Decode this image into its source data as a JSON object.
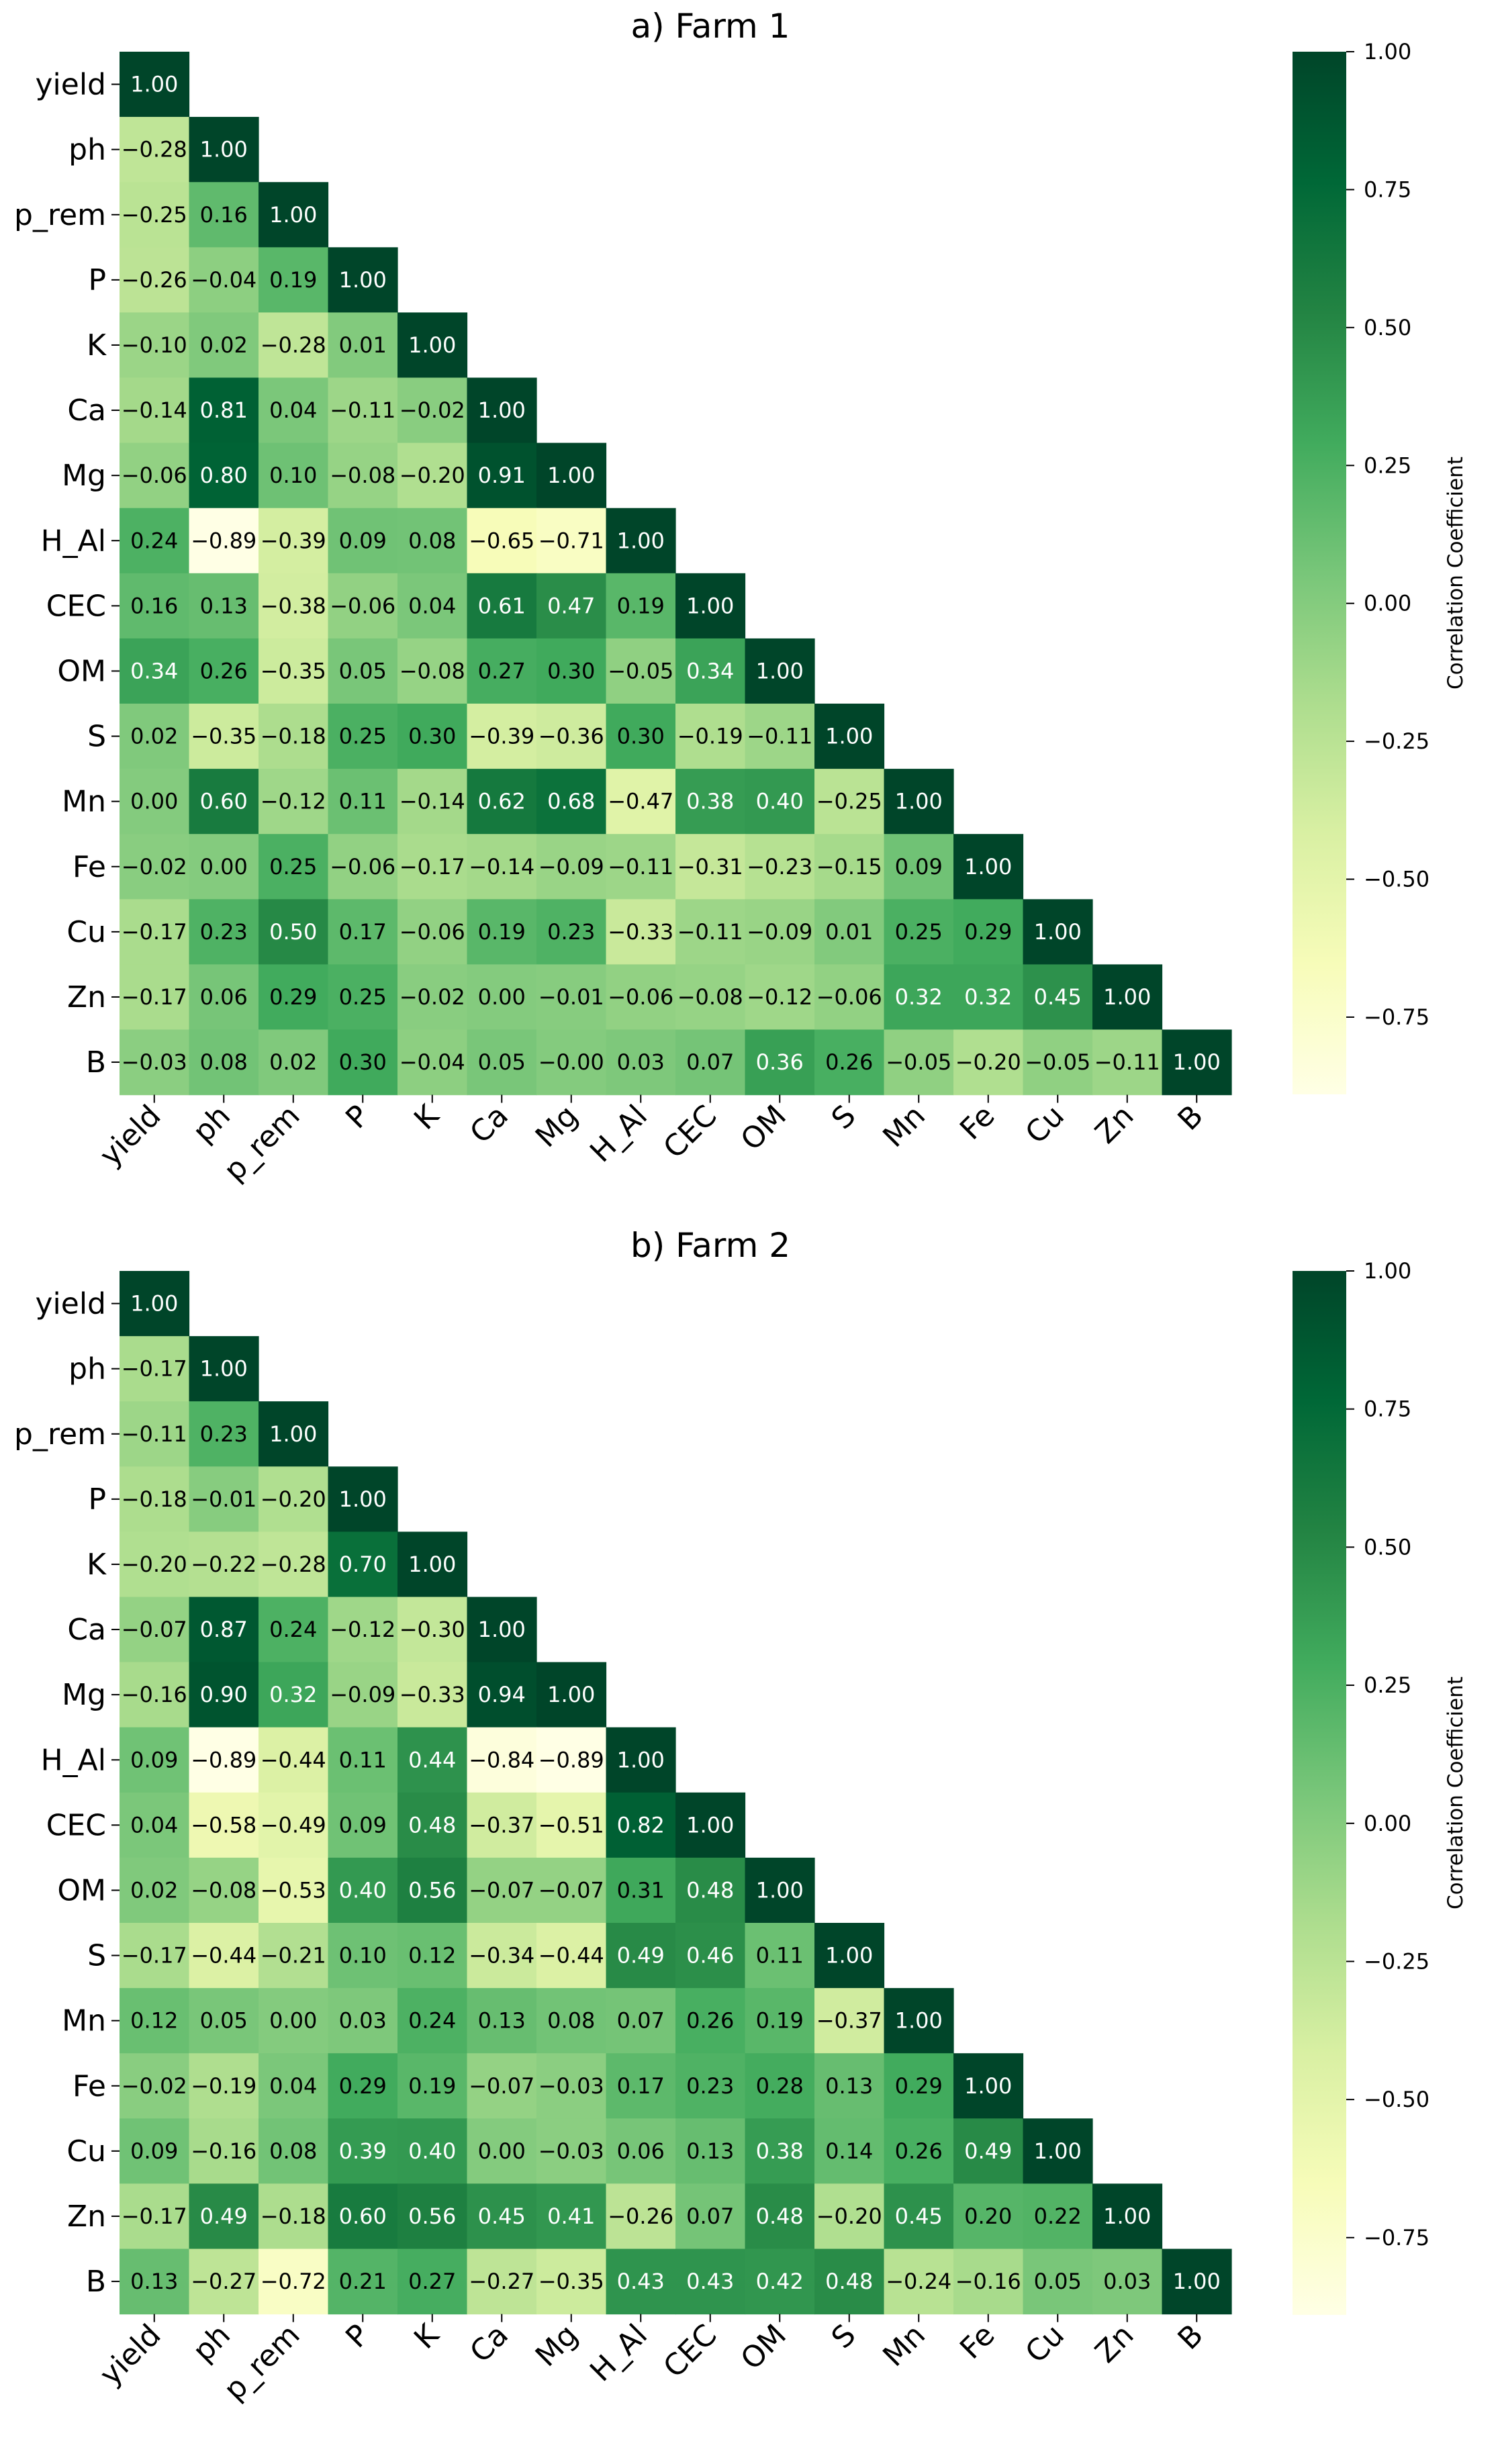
{
  "chart_data": [
    {
      "type": "heatmap",
      "title": "a) Farm 1",
      "variables": [
        "yield",
        "ph",
        "p_rem",
        "P",
        "K",
        "Ca",
        "Mg",
        "H_Al",
        "CEC",
        "OM",
        "S",
        "Mn",
        "Fe",
        "Cu",
        "Zn",
        "B"
      ],
      "matrix_lower": [
        [
          1.0
        ],
        [
          -0.28,
          1.0
        ],
        [
          -0.25,
          0.16,
          1.0
        ],
        [
          -0.26,
          -0.04,
          0.19,
          1.0
        ],
        [
          -0.1,
          0.02,
          -0.28,
          0.01,
          1.0
        ],
        [
          -0.14,
          0.81,
          0.04,
          -0.11,
          -0.02,
          1.0
        ],
        [
          -0.06,
          0.8,
          0.1,
          -0.08,
          -0.2,
          0.91,
          1.0
        ],
        [
          0.24,
          -0.89,
          -0.39,
          0.09,
          0.08,
          -0.65,
          -0.71,
          1.0
        ],
        [
          0.16,
          0.13,
          -0.38,
          -0.06,
          0.04,
          0.61,
          0.47,
          0.19,
          1.0
        ],
        [
          0.34,
          0.26,
          -0.35,
          0.05,
          -0.08,
          0.27,
          0.3,
          -0.05,
          0.34,
          1.0
        ],
        [
          0.02,
          -0.35,
          -0.18,
          0.25,
          0.3,
          -0.39,
          -0.36,
          0.3,
          -0.19,
          -0.11,
          1.0
        ],
        [
          0.0,
          0.6,
          -0.12,
          0.11,
          -0.14,
          0.62,
          0.68,
          -0.47,
          0.38,
          0.4,
          -0.25,
          1.0
        ],
        [
          -0.02,
          0.0,
          0.25,
          -0.06,
          -0.17,
          -0.14,
          -0.09,
          -0.11,
          -0.31,
          -0.23,
          -0.15,
          0.09,
          1.0
        ],
        [
          -0.17,
          0.23,
          0.5,
          0.17,
          -0.06,
          0.19,
          0.23,
          -0.33,
          -0.11,
          -0.09,
          0.01,
          0.25,
          0.29,
          1.0
        ],
        [
          -0.17,
          0.06,
          0.29,
          0.25,
          -0.02,
          0.0,
          -0.01,
          -0.06,
          -0.08,
          -0.12,
          -0.06,
          0.32,
          0.32,
          0.45,
          1.0
        ],
        [
          -0.03,
          0.08,
          0.02,
          0.3,
          -0.04,
          0.05,
          -0.0,
          0.03,
          0.07,
          0.36,
          0.26,
          -0.05,
          -0.2,
          -0.05,
          -0.11,
          1.0
        ]
      ],
      "colorbar": {
        "label": "Correlation Coefficient",
        "range": [
          -0.89,
          1.0
        ],
        "ticks": [
          "1.00",
          "0.75",
          "0.50",
          "0.25",
          "0.00",
          "−0.25",
          "−0.50",
          "−0.75"
        ]
      }
    },
    {
      "type": "heatmap",
      "title": "b) Farm 2",
      "variables": [
        "yield",
        "ph",
        "p_rem",
        "P",
        "K",
        "Ca",
        "Mg",
        "H_Al",
        "CEC",
        "OM",
        "S",
        "Mn",
        "Fe",
        "Cu",
        "Zn",
        "B"
      ],
      "matrix_lower": [
        [
          1.0
        ],
        [
          -0.17,
          1.0
        ],
        [
          -0.11,
          0.23,
          1.0
        ],
        [
          -0.18,
          -0.01,
          -0.2,
          1.0
        ],
        [
          -0.2,
          -0.22,
          -0.28,
          0.7,
          1.0
        ],
        [
          -0.07,
          0.87,
          0.24,
          -0.12,
          -0.3,
          1.0
        ],
        [
          -0.16,
          0.9,
          0.32,
          -0.09,
          -0.33,
          0.94,
          1.0
        ],
        [
          0.09,
          -0.89,
          -0.44,
          0.11,
          0.44,
          -0.84,
          -0.89,
          1.0
        ],
        [
          0.04,
          -0.58,
          -0.49,
          0.09,
          0.48,
          -0.37,
          -0.51,
          0.82,
          1.0
        ],
        [
          0.02,
          -0.08,
          -0.53,
          0.4,
          0.56,
          -0.07,
          -0.07,
          0.31,
          0.48,
          1.0
        ],
        [
          -0.17,
          -0.44,
          -0.21,
          0.1,
          0.12,
          -0.34,
          -0.44,
          0.49,
          0.46,
          0.11,
          1.0
        ],
        [
          0.12,
          0.05,
          0.0,
          0.03,
          0.24,
          0.13,
          0.08,
          0.07,
          0.26,
          0.19,
          -0.37,
          1.0
        ],
        [
          -0.02,
          -0.19,
          0.04,
          0.29,
          0.19,
          -0.07,
          -0.03,
          0.17,
          0.23,
          0.28,
          0.13,
          0.29,
          1.0
        ],
        [
          0.09,
          -0.16,
          0.08,
          0.39,
          0.4,
          0.0,
          -0.03,
          0.06,
          0.13,
          0.38,
          0.14,
          0.26,
          0.49,
          1.0
        ],
        [
          -0.17,
          0.49,
          -0.18,
          0.6,
          0.56,
          0.45,
          0.41,
          -0.26,
          0.07,
          0.48,
          -0.2,
          0.45,
          0.2,
          0.22,
          1.0
        ],
        [
          0.13,
          -0.27,
          -0.72,
          0.21,
          0.27,
          -0.27,
          -0.35,
          0.43,
          0.43,
          0.42,
          0.48,
          -0.24,
          -0.16,
          0.05,
          0.03,
          1.0
        ]
      ],
      "colorbar": {
        "label": "Correlation Coefficient",
        "range": [
          -0.89,
          1.0
        ],
        "ticks": [
          "1.00",
          "0.75",
          "0.50",
          "0.25",
          "0.00",
          "−0.25",
          "−0.50",
          "−0.75"
        ]
      }
    }
  ]
}
